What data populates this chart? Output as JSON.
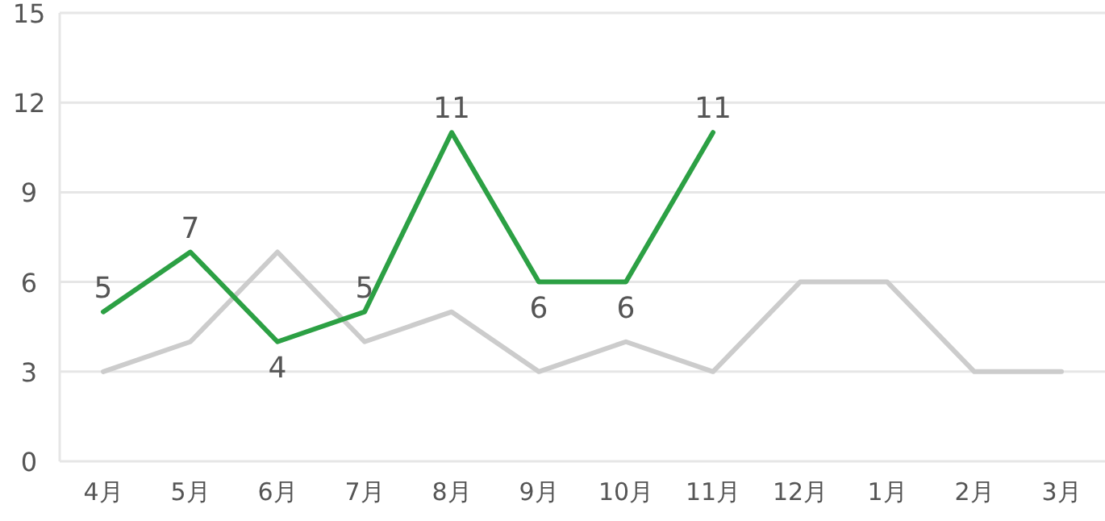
{
  "chart_data": {
    "type": "line",
    "categories": [
      "4月",
      "5月",
      "6月",
      "7月",
      "8月",
      "9月",
      "10月",
      "11月",
      "12月",
      "1月",
      "2月",
      "3月"
    ],
    "series": [
      {
        "color": "#cccccc",
        "values": [
          3,
          4,
          7,
          4,
          5,
          3,
          4,
          3,
          6,
          6,
          3,
          3
        ]
      },
      {
        "color": "#2ca044",
        "values": [
          5,
          7,
          4,
          5,
          11,
          6,
          6,
          11,
          null,
          null,
          null,
          null
        ],
        "value_labels": [
          "5",
          "7",
          "4",
          "5",
          "11",
          "6",
          "6",
          "11",
          null,
          null,
          null,
          null
        ]
      }
    ],
    "ylim": [
      0,
      15
    ],
    "yticks": [
      0,
      3,
      6,
      9,
      12,
      15
    ],
    "grid": "y",
    "marker": "none",
    "line_style": "solid"
  }
}
